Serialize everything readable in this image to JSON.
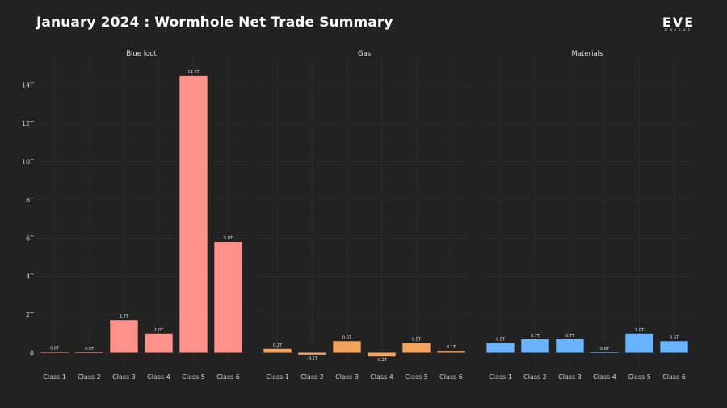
{
  "header": {
    "title": "January 2024 : Wormhole Net Trade Summary",
    "logo_main": "EVE",
    "logo_sub": "ONLINE"
  },
  "colors": {
    "background": "#222222",
    "grid": "#333333",
    "blue_loot": "#FF918A",
    "gas": "#F5A25D",
    "materials": "#6AB4FF"
  },
  "chart_data": {
    "type": "bar",
    "title": "January 2024 : Wormhole Net Trade Summary",
    "ylabel": "",
    "xlabel": "",
    "ylim": [
      -0.5,
      15
    ],
    "yticks": [
      0,
      2,
      4,
      6,
      8,
      10,
      12,
      14
    ],
    "ytick_labels": [
      "0",
      "2T",
      "4T",
      "6T",
      "8T",
      "10T",
      "12T",
      "14T"
    ],
    "categories": [
      "Class 1",
      "Class 2",
      "Class 3",
      "Class 4",
      "Class 5",
      "Class 6"
    ],
    "grid": true,
    "panels": [
      {
        "name": "Blue loot",
        "color": "#FF918A",
        "values": [
          0.04,
          0.03,
          1.7,
          1.0,
          14.5,
          5.8
        ],
        "labels": [
          "0.0T",
          "0.0T",
          "1.7T",
          "1.0T",
          "14.5T",
          "5.8T"
        ]
      },
      {
        "name": "Gas",
        "color": "#F5A25D",
        "values": [
          0.2,
          -0.1,
          0.6,
          -0.2,
          0.5,
          0.1
        ],
        "labels": [
          "0.2T",
          "-0.1T",
          "0.6T",
          "-0.2T",
          "0.5T",
          "0.1T"
        ]
      },
      {
        "name": "Materials",
        "color": "#6AB4FF",
        "values": [
          0.5,
          0.7,
          0.7,
          0.03,
          1.0,
          0.6
        ],
        "labels": [
          "0.5T",
          "0.7T",
          "0.7T",
          "0.0T",
          "1.0T",
          "0.6T"
        ]
      }
    ]
  }
}
